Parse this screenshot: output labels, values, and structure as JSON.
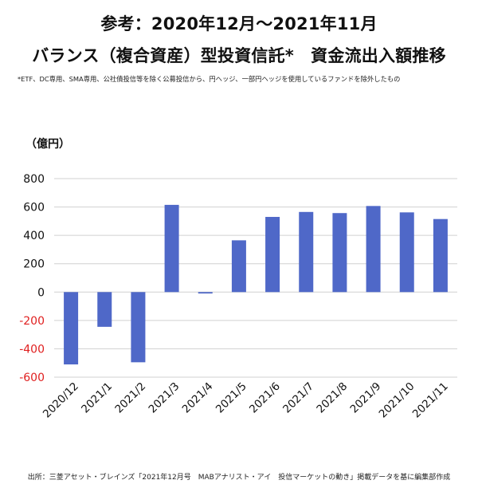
{
  "header": {
    "title_line1": "参考：2020年12月～2021年11月",
    "title_line2": "バランス（複合資産）型投資信託*　資金流出入額推移",
    "note": "*ETF、DC専用、SMA専用、公社債投信等を除く公募投信から、円ヘッジ、一部円ヘッジを使用しているファンドを除外したもの"
  },
  "source": "出所：三菱アセット・ブレインズ「2021年12月号　MABアナリスト・アイ　投信マーケットの動き」掲載データを基に編集部作成",
  "chart_data": {
    "type": "bar",
    "ylabel": "（億円）",
    "categories": [
      "2020/12",
      "2021/1",
      "2021/2",
      "2021/3",
      "2021/4",
      "2021/5",
      "2021/6",
      "2021/7",
      "2021/8",
      "2021/9",
      "2021/10",
      "2021/11"
    ],
    "values": [
      -510,
      -245,
      -495,
      615,
      -10,
      365,
      530,
      565,
      557,
      607,
      562,
      515
    ],
    "ylim": [
      -600,
      800
    ],
    "yticks": [
      800,
      600,
      400,
      200,
      0,
      -200,
      -400,
      -600
    ],
    "ytick_labels": [
      "800",
      "600",
      "400",
      "200",
      "0",
      "-200",
      "-400",
      "-600"
    ],
    "grid": true,
    "colors": {
      "bar": "#4f68c8",
      "negative_tick": "#e02020",
      "grid": "#d0d0d0"
    }
  }
}
